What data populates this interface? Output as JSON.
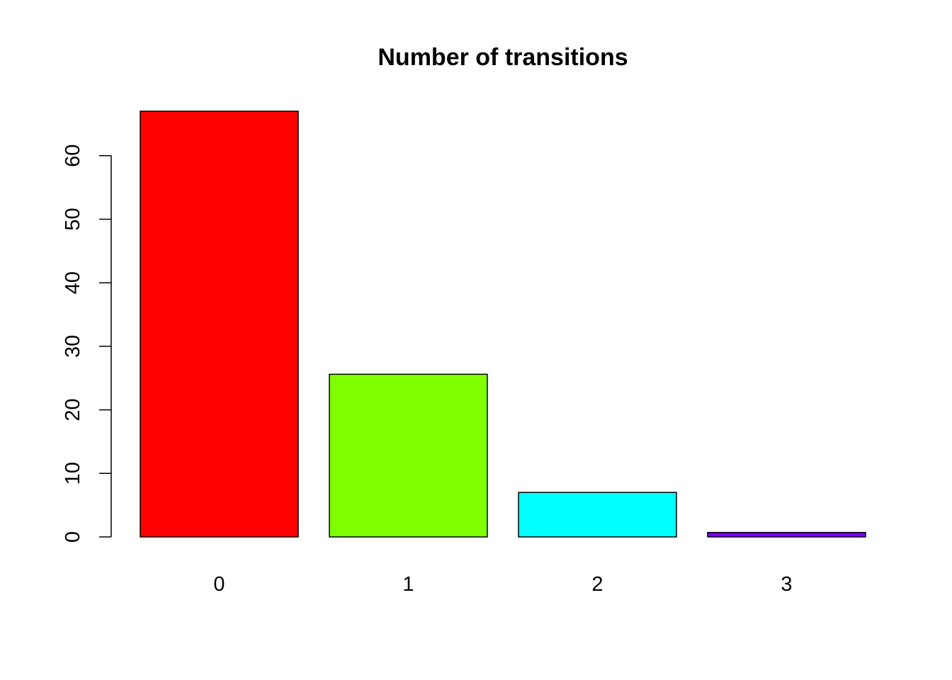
{
  "chart_data": {
    "type": "bar",
    "title": "Number of transitions",
    "xlabel": "",
    "ylabel": "",
    "categories": [
      "0",
      "1",
      "2",
      "3"
    ],
    "values": [
      67,
      25.6,
      7,
      0.7
    ],
    "colors": [
      "#ff0000",
      "#80ff00",
      "#00ffff",
      "#8000ff"
    ],
    "ylim": [
      0,
      67
    ],
    "yticks": [
      0,
      10,
      20,
      30,
      40,
      50,
      60
    ],
    "ytick_labels": [
      "0",
      "10",
      "20",
      "30",
      "40",
      "50",
      "60"
    ],
    "grid": false,
    "legend": "none"
  }
}
